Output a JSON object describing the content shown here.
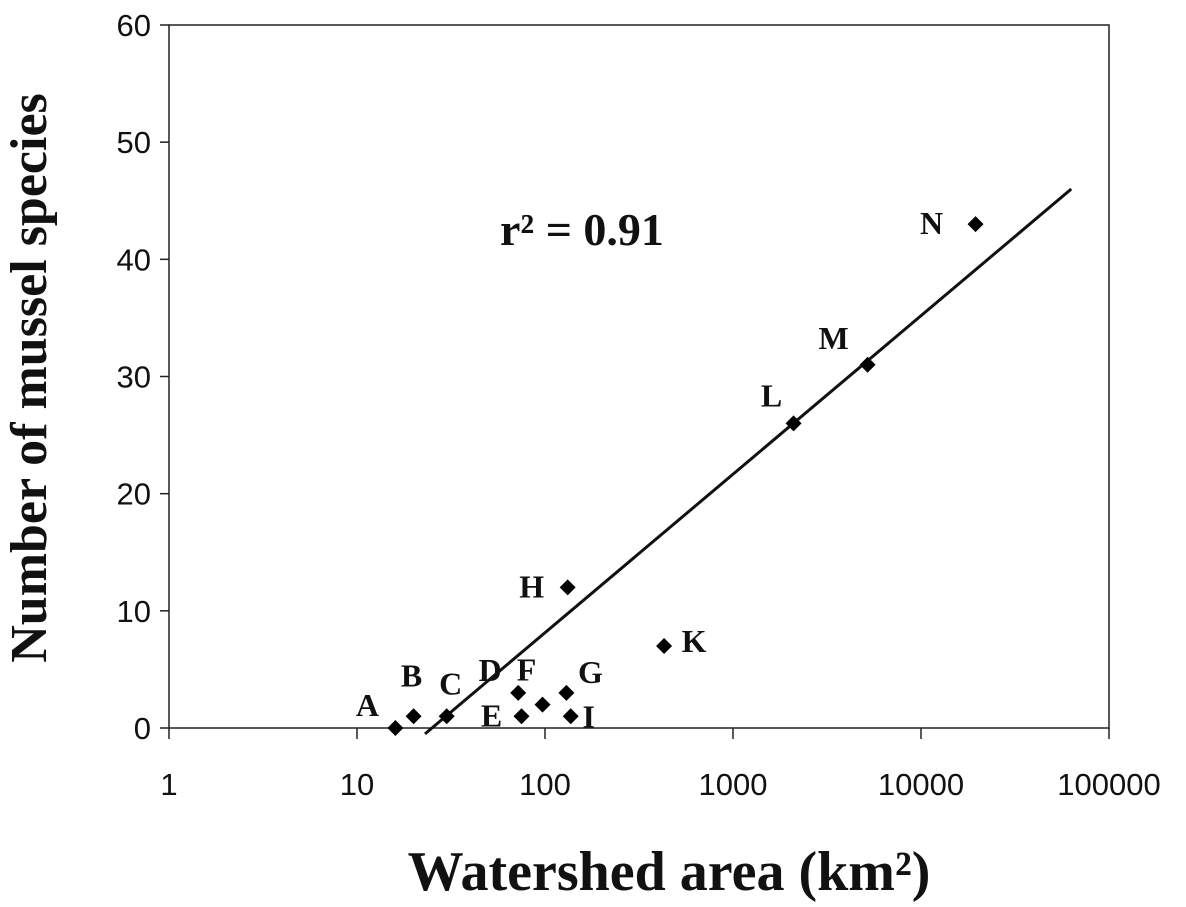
{
  "chart_data": {
    "type": "scatter",
    "title": "",
    "xlabel": "Watershed area (km²)",
    "ylabel": "Number of mussel species",
    "x_scale": "log",
    "xlim": [
      1,
      100000
    ],
    "ylim": [
      0,
      60
    ],
    "x_ticks": [
      1,
      10,
      100,
      1000,
      10000,
      100000
    ],
    "x_tick_labels": [
      "1",
      "10",
      "100",
      "1000",
      "10000",
      "100000"
    ],
    "y_ticks": [
      0,
      10,
      20,
      30,
      40,
      50,
      60
    ],
    "y_tick_labels": [
      "0",
      "10",
      "20",
      "30",
      "40",
      "50",
      "60"
    ],
    "grid": false,
    "legend": "none",
    "annotation": "r² = 0.91",
    "points": [
      {
        "label": "A",
        "x": 16,
        "y": 0
      },
      {
        "label": "B",
        "x": 20,
        "y": 1
      },
      {
        "label": "C",
        "x": 30,
        "y": 1
      },
      {
        "label": "D",
        "x": 72,
        "y": 3
      },
      {
        "label": "E",
        "x": 75,
        "y": 1
      },
      {
        "label": "F",
        "x": 97,
        "y": 2
      },
      {
        "label": "G",
        "x": 130,
        "y": 3
      },
      {
        "label": "H",
        "x": 132,
        "y": 12
      },
      {
        "label": "I",
        "x": 137,
        "y": 1
      },
      {
        "label": "K",
        "x": 430,
        "y": 7
      },
      {
        "label": "L",
        "x": 2100,
        "y": 26
      },
      {
        "label": "M",
        "x": 5200,
        "y": 31
      },
      {
        "label": "N",
        "x": 19500,
        "y": 43
      }
    ],
    "trendline": {
      "x": [
        23,
        63000
      ],
      "y": [
        -0.5,
        46
      ]
    },
    "marker_color": "#000000"
  }
}
